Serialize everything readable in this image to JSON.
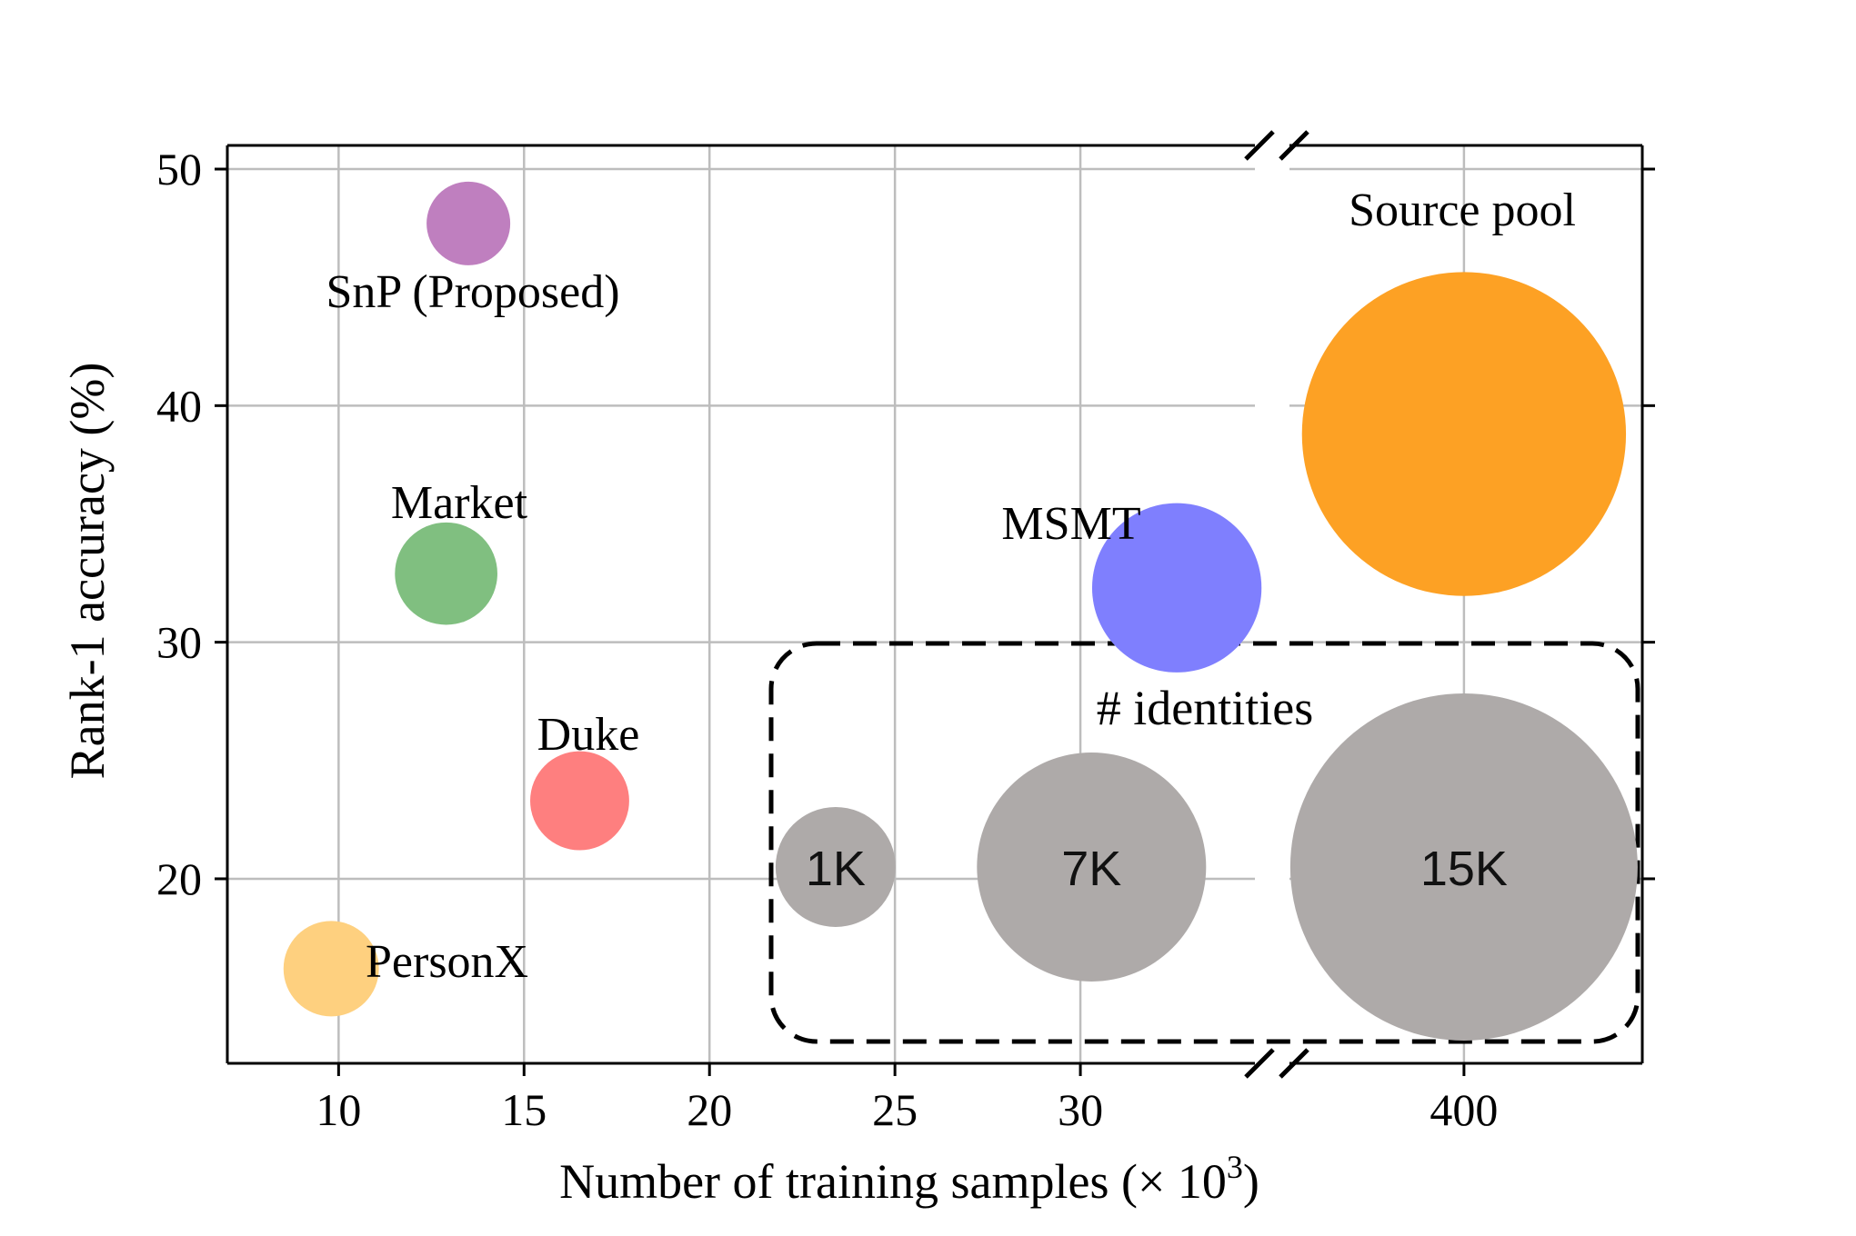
{
  "chart_data": {
    "type": "scatter",
    "xlabel": "Number of training samples (× 10",
    "xlabel_superscript": "3",
    "xlabel_close": ")",
    "ylabel": "Rank-1 accuracy (%)",
    "x_left_segment": {
      "xlim": [
        7,
        35
      ],
      "ticks": [
        10,
        15,
        20,
        25,
        30
      ],
      "tick_labels": [
        "10",
        "15",
        "20",
        "25",
        "30"
      ]
    },
    "x_right_segment": {
      "xlim": [
        350,
        445
      ],
      "ticks": [
        400
      ],
      "tick_labels": [
        "400"
      ]
    },
    "axis_break": true,
    "ylim": [
      12.2,
      51
    ],
    "yticks": [
      20,
      30,
      40,
      50
    ],
    "ytick_labels": [
      "20",
      "30",
      "40",
      "50"
    ],
    "grid": true,
    "points": [
      {
        "label": "SnP (Proposed)",
        "x": 13.5,
        "y": 47.7,
        "color": "#bf7fbf",
        "size_identities_k": 1,
        "segment": "left"
      },
      {
        "label": "Market",
        "x": 12.9,
        "y": 32.9,
        "color": "#80bf80",
        "size_identities_k": 1.5,
        "segment": "left"
      },
      {
        "label": "MSMT",
        "x": 32.6,
        "y": 32.3,
        "color": "#7f7ffe",
        "size_identities_k": 4.1,
        "segment": "left"
      },
      {
        "label": "Duke",
        "x": 16.5,
        "y": 23.3,
        "color": "#fe7f7f",
        "size_identities_k": 1.4,
        "segment": "left"
      },
      {
        "label": "PersonX",
        "x": 9.8,
        "y": 16.2,
        "color": "#fed07f",
        "size_identities_k": 1.3,
        "segment": "left"
      },
      {
        "label": "Source pool",
        "x": 400,
        "y": 38.8,
        "color": "#fda124",
        "size_identities_k": 15,
        "segment": "right"
      }
    ],
    "size_legend": {
      "title": "# identities",
      "color": "#aeaaa9",
      "entries": [
        {
          "label": "1K",
          "x": 23.4,
          "y": 20.5,
          "segment": "left"
        },
        {
          "label": "7K",
          "x": 30.3,
          "y": 20.5,
          "segment": "left"
        },
        {
          "label": "15K",
          "x": 400,
          "y": 20.5,
          "segment": "right"
        }
      ]
    }
  }
}
